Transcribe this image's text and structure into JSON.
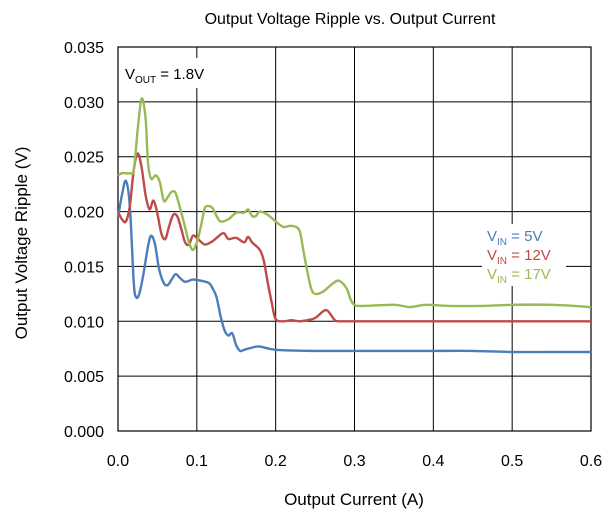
{
  "chart_data": {
    "type": "line",
    "title": "Output Voltage Ripple vs. Output Current",
    "xlabel": "Output Current (A)",
    "ylabel": "Output Voltage Ripple (V)",
    "xlim": [
      0,
      0.6
    ],
    "ylim": [
      0,
      0.035
    ],
    "x_ticks": [
      "0.0",
      "0.1",
      "0.2",
      "0.3",
      "0.4",
      "0.5",
      "0.6"
    ],
    "y_ticks": [
      "0.000",
      "0.005",
      "0.010",
      "0.015",
      "0.020",
      "0.025",
      "0.030",
      "0.035"
    ],
    "grid": true,
    "annotation": {
      "main": "V",
      "sub": "OUT",
      "rest": " = 1.8V"
    },
    "series": [
      {
        "name": "VIN = 5V",
        "label_main": "V",
        "label_sub": "IN",
        "label_rest": " = 5V",
        "color": "#4a7ebb",
        "points": [
          [
            0.0,
            0.0195
          ],
          [
            0.005,
            0.0215
          ],
          [
            0.01,
            0.0228
          ],
          [
            0.015,
            0.0205
          ],
          [
            0.02,
            0.0135
          ],
          [
            0.023,
            0.0122
          ],
          [
            0.027,
            0.0125
          ],
          [
            0.032,
            0.0142
          ],
          [
            0.038,
            0.0168
          ],
          [
            0.042,
            0.0178
          ],
          [
            0.047,
            0.017
          ],
          [
            0.052,
            0.0148
          ],
          [
            0.058,
            0.0135
          ],
          [
            0.063,
            0.0133
          ],
          [
            0.068,
            0.0138
          ],
          [
            0.073,
            0.0143
          ],
          [
            0.078,
            0.014
          ],
          [
            0.085,
            0.0136
          ],
          [
            0.095,
            0.0138
          ],
          [
            0.105,
            0.0137
          ],
          [
            0.115,
            0.0135
          ],
          [
            0.12,
            0.013
          ],
          [
            0.125,
            0.0122
          ],
          [
            0.13,
            0.0105
          ],
          [
            0.135,
            0.0092
          ],
          [
            0.14,
            0.0087
          ],
          [
            0.145,
            0.0089
          ],
          [
            0.15,
            0.0078
          ],
          [
            0.155,
            0.0073
          ],
          [
            0.16,
            0.0074
          ],
          [
            0.17,
            0.0076
          ],
          [
            0.18,
            0.0077
          ],
          [
            0.2,
            0.0074
          ],
          [
            0.25,
            0.0073
          ],
          [
            0.3,
            0.0073
          ],
          [
            0.35,
            0.0073
          ],
          [
            0.4,
            0.0073
          ],
          [
            0.45,
            0.0073
          ],
          [
            0.5,
            0.0072
          ],
          [
            0.55,
            0.0072
          ],
          [
            0.6,
            0.0072
          ]
        ]
      },
      {
        "name": "VIN = 12V",
        "label_main": "V",
        "label_sub": "IN",
        "label_rest": " = 12V",
        "color": "#be4b48",
        "points": [
          [
            0.0,
            0.02
          ],
          [
            0.005,
            0.0193
          ],
          [
            0.01,
            0.0191
          ],
          [
            0.015,
            0.0205
          ],
          [
            0.02,
            0.0238
          ],
          [
            0.025,
            0.0253
          ],
          [
            0.03,
            0.024
          ],
          [
            0.035,
            0.0215
          ],
          [
            0.04,
            0.0202
          ],
          [
            0.045,
            0.021
          ],
          [
            0.05,
            0.0198
          ],
          [
            0.055,
            0.018
          ],
          [
            0.06,
            0.0175
          ],
          [
            0.065,
            0.0187
          ],
          [
            0.07,
            0.0197
          ],
          [
            0.075,
            0.0196
          ],
          [
            0.08,
            0.0185
          ],
          [
            0.085,
            0.0172
          ],
          [
            0.09,
            0.017
          ],
          [
            0.095,
            0.0178
          ],
          [
            0.1,
            0.0176
          ],
          [
            0.11,
            0.017
          ],
          [
            0.12,
            0.0173
          ],
          [
            0.13,
            0.0179
          ],
          [
            0.135,
            0.018
          ],
          [
            0.14,
            0.0175
          ],
          [
            0.15,
            0.0176
          ],
          [
            0.16,
            0.0172
          ],
          [
            0.165,
            0.0177
          ],
          [
            0.17,
            0.0172
          ],
          [
            0.18,
            0.0165
          ],
          [
            0.185,
            0.0155
          ],
          [
            0.19,
            0.0135
          ],
          [
            0.195,
            0.0117
          ],
          [
            0.2,
            0.0102
          ],
          [
            0.21,
            0.01
          ],
          [
            0.22,
            0.0101
          ],
          [
            0.23,
            0.01
          ],
          [
            0.24,
            0.0101
          ],
          [
            0.25,
            0.0103
          ],
          [
            0.26,
            0.0109
          ],
          [
            0.265,
            0.011
          ],
          [
            0.27,
            0.0106
          ],
          [
            0.275,
            0.0101
          ],
          [
            0.28,
            0.01
          ],
          [
            0.3,
            0.01
          ],
          [
            0.35,
            0.01
          ],
          [
            0.4,
            0.01
          ],
          [
            0.5,
            0.01
          ],
          [
            0.6,
            0.01
          ]
        ]
      },
      {
        "name": "VIN = 17V",
        "label_main": "V",
        "label_sub": "IN",
        "label_rest": " = 17V",
        "color": "#98b954",
        "points": [
          [
            0.0,
            0.0233
          ],
          [
            0.005,
            0.0235
          ],
          [
            0.01,
            0.0235
          ],
          [
            0.015,
            0.0235
          ],
          [
            0.02,
            0.0238
          ],
          [
            0.025,
            0.0275
          ],
          [
            0.03,
            0.0303
          ],
          [
            0.035,
            0.0285
          ],
          [
            0.038,
            0.0245
          ],
          [
            0.042,
            0.023
          ],
          [
            0.048,
            0.0233
          ],
          [
            0.053,
            0.0227
          ],
          [
            0.058,
            0.021
          ],
          [
            0.063,
            0.0213
          ],
          [
            0.068,
            0.0218
          ],
          [
            0.073,
            0.0217
          ],
          [
            0.078,
            0.0205
          ],
          [
            0.085,
            0.0186
          ],
          [
            0.09,
            0.0172
          ],
          [
            0.095,
            0.0165
          ],
          [
            0.1,
            0.0172
          ],
          [
            0.105,
            0.0186
          ],
          [
            0.11,
            0.0203
          ],
          [
            0.115,
            0.0205
          ],
          [
            0.12,
            0.0203
          ],
          [
            0.125,
            0.0196
          ],
          [
            0.13,
            0.0191
          ],
          [
            0.14,
            0.0193
          ],
          [
            0.15,
            0.0199
          ],
          [
            0.16,
            0.0199
          ],
          [
            0.165,
            0.0202
          ],
          [
            0.17,
            0.0196
          ],
          [
            0.175,
            0.0196
          ],
          [
            0.18,
            0.02
          ],
          [
            0.19,
            0.0197
          ],
          [
            0.2,
            0.0191
          ],
          [
            0.21,
            0.0186
          ],
          [
            0.22,
            0.0187
          ],
          [
            0.23,
            0.0183
          ],
          [
            0.235,
            0.0165
          ],
          [
            0.24,
            0.0146
          ],
          [
            0.245,
            0.013
          ],
          [
            0.25,
            0.0125
          ],
          [
            0.26,
            0.0127
          ],
          [
            0.27,
            0.0133
          ],
          [
            0.28,
            0.0137
          ],
          [
            0.29,
            0.013
          ],
          [
            0.295,
            0.012
          ],
          [
            0.3,
            0.0115
          ],
          [
            0.31,
            0.0114
          ],
          [
            0.35,
            0.0115
          ],
          [
            0.37,
            0.0113
          ],
          [
            0.39,
            0.0115
          ],
          [
            0.42,
            0.0114
          ],
          [
            0.46,
            0.0114
          ],
          [
            0.5,
            0.0115
          ],
          [
            0.55,
            0.0115
          ],
          [
            0.6,
            0.0113
          ]
        ]
      }
    ]
  }
}
